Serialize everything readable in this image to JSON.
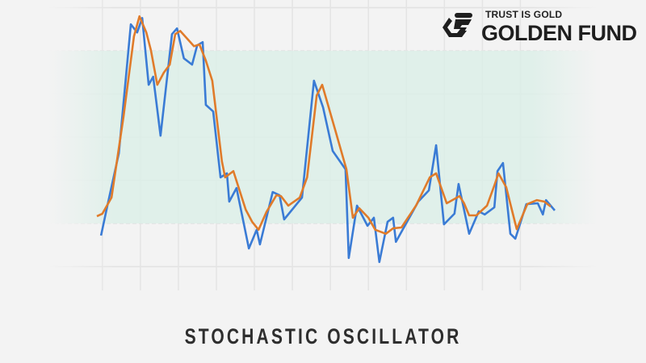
{
  "title": "STOCHASTIC OSCILLATOR",
  "logo": {
    "tagline": "TRUST IS GOLD",
    "name": "GOLDEN FUND"
  },
  "chart_data": {
    "type": "line",
    "title": "STOCHASTIC OSCILLATOR",
    "xlabel": "",
    "ylabel": "",
    "ylim": [
      0,
      100
    ],
    "xlim": [
      0,
      100
    ],
    "grid": true,
    "band": {
      "from": 20,
      "to": 80,
      "color": "#dcefe7"
    },
    "series": [
      {
        "color": "#3a7bd5",
        "x": [
          0.9,
          2.3,
          4.8,
          7.4,
          8.8,
          9.9,
          11.3,
          12.3,
          13.9,
          16.4,
          17.5,
          19,
          20.8,
          21.9,
          23.1,
          23.8,
          25.4,
          27,
          28.4,
          28.9,
          30.5,
          33.2,
          34.9,
          35.6,
          38.4,
          39.9,
          40.9,
          44.8,
          47.4,
          49.4,
          51.5,
          54.3,
          55,
          56.8,
          59.1,
          60.5,
          61.7,
          63.5,
          64.7,
          65.3,
          70.2,
          72.5,
          74.1,
          75.8,
          78.1,
          79,
          81.3,
          83.4,
          84.7,
          86.8,
          87.5,
          88.7,
          90.3,
          91.4,
          93.8,
          96.3,
          97.4,
          98.1,
          100
        ],
        "y": [
          15.8,
          26.2,
          44.4,
          89.2,
          86.4,
          91.4,
          68.2,
          71,
          50.5,
          85.8,
          87.8,
          77.4,
          75.2,
          81.9,
          83,
          61.2,
          58.9,
          36,
          37.4,
          27.6,
          32.3,
          11.3,
          17.8,
          12.7,
          30.9,
          29.8,
          21.4,
          29,
          69.6,
          60.3,
          45.2,
          38.8,
          8,
          26.2,
          19.2,
          22,
          6.6,
          20.6,
          22,
          13.6,
          27.6,
          31.5,
          47.2,
          19.7,
          23.4,
          33.7,
          16.4,
          24.2,
          23.1,
          25.6,
          38.2,
          41,
          16.4,
          14.7,
          26.7,
          27,
          23.1,
          28.1,
          24.5
        ]
      },
      {
        "color": "#e07b2a",
        "x": [
          0,
          1.2,
          3.2,
          5.8,
          8.1,
          9.3,
          10.8,
          11.8,
          13.2,
          14.6,
          15.9,
          17.1,
          18.2,
          21.2,
          22.4,
          23.8,
          25.2,
          27.3,
          28,
          29.8,
          32.5,
          33.9,
          35.3,
          37,
          39.2,
          40.2,
          41.8,
          44.3,
          45.9,
          48,
          49.2,
          52,
          54.5,
          55.9,
          57.3,
          59.3,
          60.8,
          63.1,
          64.7,
          66.5,
          69.7,
          72.7,
          74.1,
          76.4,
          79.2,
          80.2,
          81.3,
          82.9,
          85.2,
          86.8,
          87.7,
          89.4,
          91.7,
          94,
          96.1,
          97.7,
          99.1
        ],
        "y": [
          22.5,
          23.4,
          29,
          57,
          85,
          92,
          86.4,
          80.2,
          68.2,
          72.4,
          75.2,
          85.8,
          86.9,
          81.6,
          82.2,
          76.6,
          69.6,
          41.6,
          36,
          38.2,
          24.8,
          20.6,
          17.8,
          23.9,
          29.8,
          29.5,
          26.2,
          29,
          36,
          64.5,
          68.2,
          52.8,
          38.8,
          22,
          25.3,
          22,
          17.8,
          16.4,
          18.3,
          18.6,
          26.2,
          36,
          37.4,
          27,
          29.5,
          27,
          22.8,
          22.8,
          26.2,
          33.2,
          37.4,
          32.6,
          18,
          26.7,
          28.1,
          27.6,
          25.9
        ]
      }
    ]
  }
}
